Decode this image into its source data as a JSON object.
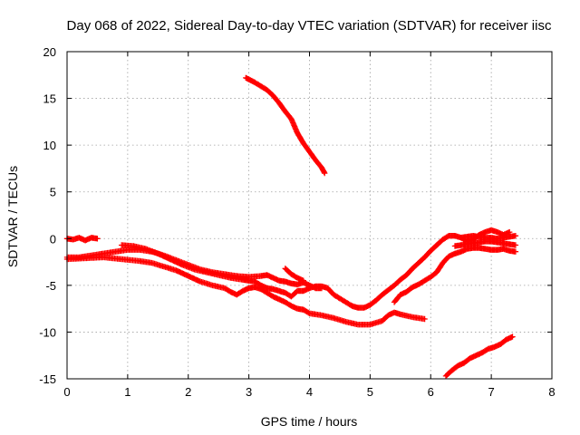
{
  "chart_data": {
    "type": "scatter",
    "title": "Day 068 of 2022, Sidereal Day-to-day VTEC variation (SDTVAR) for receiver iisc",
    "xlabel": "GPS time / hours",
    "ylabel": "SDTVAR / TECUs",
    "xlim": [
      0,
      8
    ],
    "ylim": [
      -15,
      20
    ],
    "xticks": [
      0,
      1,
      2,
      3,
      4,
      5,
      6,
      7,
      8
    ],
    "yticks": [
      -15,
      -10,
      -5,
      0,
      5,
      10,
      15,
      20
    ],
    "grid": true,
    "marker": "plus",
    "color": "#ff0000",
    "series": [
      {
        "name": "s1",
        "points": [
          [
            0,
            0
          ],
          [
            0.1,
            -0.1
          ],
          [
            0.2,
            0.1
          ],
          [
            0.3,
            -0.2
          ],
          [
            0.4,
            0.1
          ],
          [
            0.5,
            0
          ]
        ]
      },
      {
        "name": "s2",
        "points": [
          [
            0,
            -2
          ],
          [
            0.2,
            -2
          ],
          [
            0.4,
            -1.8
          ],
          [
            0.6,
            -1.6
          ],
          [
            0.8,
            -1.4
          ],
          [
            1.0,
            -1.2
          ],
          [
            1.2,
            -1.2
          ],
          [
            1.4,
            -1.4
          ],
          [
            1.6,
            -1.8
          ],
          [
            1.8,
            -2.3
          ],
          [
            2.0,
            -2.8
          ],
          [
            2.2,
            -3.3
          ],
          [
            2.4,
            -3.6
          ],
          [
            2.6,
            -3.8
          ],
          [
            2.8,
            -4.0
          ],
          [
            3.0,
            -4.1
          ],
          [
            3.2,
            -4.0
          ],
          [
            3.3,
            -3.9
          ],
          [
            3.4,
            -4.2
          ],
          [
            3.5,
            -4.5
          ],
          [
            3.6,
            -4.6
          ],
          [
            3.7,
            -4.8
          ],
          [
            3.8,
            -4.9
          ],
          [
            3.9,
            -4.7
          ],
          [
            4.0,
            -5.0
          ],
          [
            4.1,
            -5.3
          ],
          [
            4.2,
            -5.3
          ]
        ]
      },
      {
        "name": "s3",
        "points": [
          [
            0,
            -2.2
          ],
          [
            0.3,
            -2.1
          ],
          [
            0.6,
            -2.0
          ],
          [
            0.9,
            -2.2
          ],
          [
            1.2,
            -2.4
          ],
          [
            1.4,
            -2.6
          ],
          [
            1.6,
            -3.0
          ],
          [
            1.8,
            -3.4
          ],
          [
            2.0,
            -4.0
          ],
          [
            2.2,
            -4.6
          ],
          [
            2.4,
            -5.0
          ],
          [
            2.6,
            -5.3
          ],
          [
            2.7,
            -5.7
          ],
          [
            2.8,
            -6.0
          ],
          [
            2.9,
            -5.6
          ],
          [
            3.0,
            -5.3
          ],
          [
            3.1,
            -5.2
          ],
          [
            3.2,
            -5.4
          ],
          [
            3.3,
            -5.8
          ],
          [
            3.4,
            -6.2
          ],
          [
            3.5,
            -6.5
          ],
          [
            3.6,
            -6.8
          ],
          [
            3.7,
            -7.2
          ],
          [
            3.8,
            -7.5
          ],
          [
            3.9,
            -7.6
          ],
          [
            4.0,
            -8.0
          ],
          [
            4.2,
            -8.2
          ],
          [
            4.4,
            -8.5
          ],
          [
            4.6,
            -8.9
          ],
          [
            4.8,
            -9.2
          ],
          [
            5.0,
            -9.2
          ],
          [
            5.2,
            -8.8
          ],
          [
            5.3,
            -8.2
          ],
          [
            5.4,
            -7.9
          ],
          [
            5.5,
            -8.1
          ],
          [
            5.7,
            -8.4
          ],
          [
            5.9,
            -8.6
          ]
        ]
      },
      {
        "name": "s4",
        "points": [
          [
            0.9,
            -0.7
          ],
          [
            1.1,
            -0.8
          ],
          [
            1.3,
            -1.1
          ],
          [
            1.5,
            -1.6
          ],
          [
            1.7,
            -2.2
          ],
          [
            1.9,
            -2.8
          ],
          [
            2.1,
            -3.3
          ],
          [
            2.3,
            -3.6
          ],
          [
            2.5,
            -3.9
          ],
          [
            2.7,
            -4.2
          ],
          [
            2.9,
            -4.4
          ],
          [
            3.0,
            -4.5
          ],
          [
            3.1,
            -4.6
          ],
          [
            3.2,
            -5.0
          ],
          [
            3.3,
            -5.3
          ],
          [
            3.4,
            -5.4
          ],
          [
            3.5,
            -5.6
          ],
          [
            3.6,
            -5.8
          ],
          [
            3.7,
            -6.2
          ],
          [
            3.8,
            -5.6
          ],
          [
            3.9,
            -5.6
          ],
          [
            4.0,
            -5.3
          ],
          [
            4.1,
            -5.1
          ],
          [
            4.2,
            -5.1
          ],
          [
            4.3,
            -5.3
          ],
          [
            4.4,
            -6.0
          ],
          [
            4.5,
            -6.4
          ],
          [
            4.6,
            -6.8
          ],
          [
            4.7,
            -7.2
          ],
          [
            4.8,
            -7.4
          ],
          [
            4.9,
            -7.4
          ],
          [
            5.0,
            -7.1
          ],
          [
            5.1,
            -6.6
          ],
          [
            5.2,
            -6.0
          ],
          [
            5.3,
            -5.5
          ],
          [
            5.4,
            -5.0
          ],
          [
            5.5,
            -4.4
          ],
          [
            5.6,
            -3.9
          ],
          [
            5.7,
            -3.2
          ],
          [
            5.8,
            -2.6
          ],
          [
            5.9,
            -2.0
          ],
          [
            6.0,
            -1.3
          ],
          [
            6.1,
            -0.7
          ],
          [
            6.2,
            -0.1
          ],
          [
            6.3,
            0.3
          ],
          [
            6.4,
            0.3
          ],
          [
            6.5,
            0.1
          ],
          [
            6.6,
            -0.3
          ],
          [
            6.7,
            -0.1
          ],
          [
            6.8,
            0.4
          ],
          [
            6.9,
            0.7
          ],
          [
            7.0,
            0.9
          ],
          [
            7.1,
            0.7
          ],
          [
            7.2,
            0.4
          ],
          [
            7.3,
            0.7
          ]
        ]
      },
      {
        "name": "s5",
        "points": [
          [
            3.6,
            -3.2
          ],
          [
            3.7,
            -3.8
          ],
          [
            3.8,
            -4.2
          ],
          [
            3.9,
            -4.5
          ]
        ]
      },
      {
        "name": "s6",
        "points": [
          [
            5.4,
            -6.8
          ],
          [
            5.5,
            -6.0
          ],
          [
            5.6,
            -5.7
          ],
          [
            5.7,
            -5.2
          ],
          [
            5.8,
            -4.9
          ],
          [
            5.9,
            -4.5
          ],
          [
            6.0,
            -4.1
          ],
          [
            6.1,
            -3.6
          ],
          [
            6.2,
            -2.6
          ],
          [
            6.3,
            -1.9
          ],
          [
            6.4,
            -1.6
          ],
          [
            6.5,
            -1.4
          ],
          [
            6.6,
            -1.1
          ],
          [
            6.7,
            -1.0
          ],
          [
            6.8,
            -1.0
          ],
          [
            6.9,
            -1.1
          ],
          [
            7.0,
            -1.2
          ],
          [
            7.1,
            -1.2
          ],
          [
            7.2,
            -1.1
          ],
          [
            7.3,
            -1.3
          ],
          [
            7.4,
            -1.4
          ]
        ]
      },
      {
        "name": "s7",
        "points": [
          [
            6.4,
            -0.8
          ],
          [
            6.5,
            -0.7
          ],
          [
            6.6,
            -0.6
          ],
          [
            6.7,
            -0.5
          ],
          [
            6.8,
            -0.4
          ],
          [
            6.9,
            -0.3
          ],
          [
            7.0,
            -0.3
          ],
          [
            7.1,
            -0.4
          ],
          [
            7.2,
            -0.5
          ],
          [
            7.3,
            -0.6
          ],
          [
            7.4,
            -0.7
          ]
        ]
      },
      {
        "name": "s8",
        "points": [
          [
            6.5,
            0.1
          ],
          [
            6.6,
            0.2
          ],
          [
            6.7,
            0.3
          ],
          [
            6.8,
            0.2
          ],
          [
            6.9,
            0.1
          ],
          [
            7.0,
            0.1
          ],
          [
            7.1,
            0
          ],
          [
            7.2,
            0.1
          ],
          [
            7.3,
            0.2
          ],
          [
            7.4,
            0.3
          ]
        ]
      },
      {
        "name": "s9",
        "points": [
          [
            2.95,
            17.2
          ],
          [
            3.1,
            16.7
          ],
          [
            3.3,
            15.9
          ],
          [
            3.4,
            15.3
          ],
          [
            3.5,
            14.5
          ],
          [
            3.6,
            13.6
          ],
          [
            3.7,
            12.8
          ],
          [
            3.8,
            11.3
          ],
          [
            3.9,
            10.2
          ],
          [
            4.0,
            9.3
          ],
          [
            4.1,
            8.4
          ],
          [
            4.2,
            7.6
          ],
          [
            4.25,
            7.0
          ]
        ]
      },
      {
        "name": "s10",
        "points": [
          [
            6.25,
            -14.7
          ],
          [
            6.35,
            -14.1
          ],
          [
            6.45,
            -13.6
          ],
          [
            6.55,
            -13.3
          ],
          [
            6.65,
            -12.8
          ],
          [
            6.75,
            -12.5
          ],
          [
            6.85,
            -12.2
          ],
          [
            6.95,
            -11.8
          ],
          [
            7.05,
            -11.6
          ],
          [
            7.15,
            -11.3
          ],
          [
            7.25,
            -10.8
          ],
          [
            7.35,
            -10.5
          ]
        ]
      }
    ]
  }
}
